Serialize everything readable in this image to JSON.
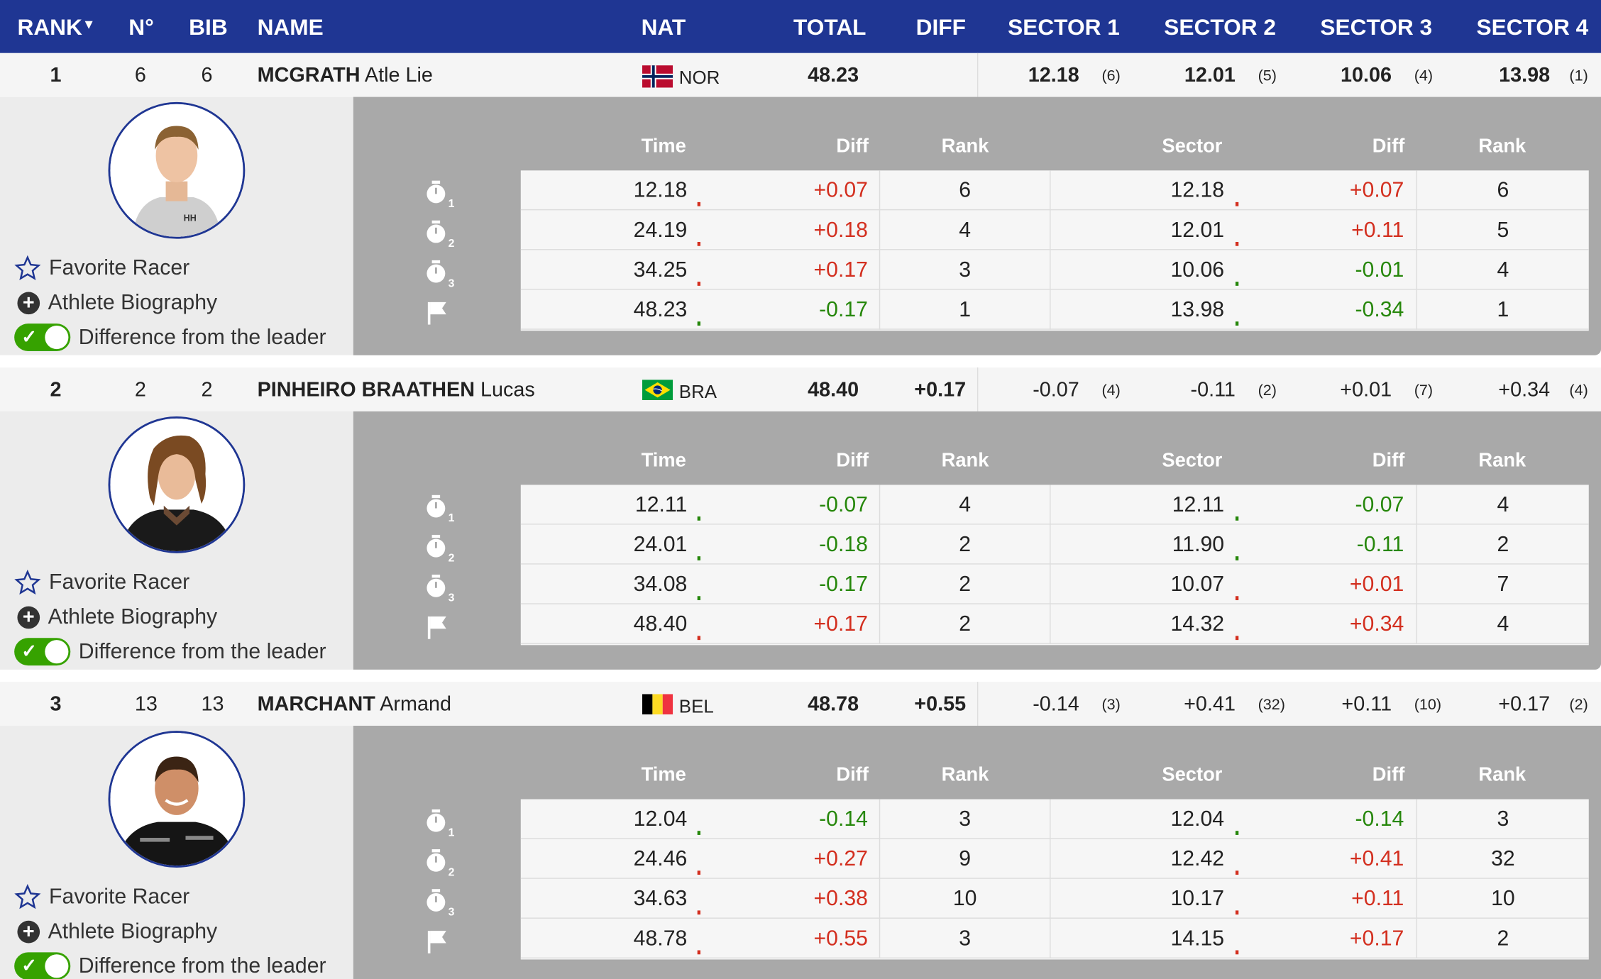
{
  "header": {
    "rank": "RANK",
    "sort_icon": "caret-down-icon",
    "no": "N°",
    "bib": "BIB",
    "name": "NAME",
    "nat": "NAT",
    "total": "TOTAL",
    "diff": "DIFF",
    "sector1": "SECTOR 1",
    "sector2": "SECTOR 2",
    "sector3": "SECTOR 3",
    "sector4": "SECTOR 4"
  },
  "colors": {
    "header_bg": "#1f3693",
    "positive": "#d32f1f",
    "negative": "#26870b",
    "toggle_on": "#36a200"
  },
  "detail_headers": {
    "time": "Time",
    "diff": "Diff",
    "rank": "Rank",
    "sector": "Sector",
    "sdiff": "Diff",
    "srank": "Rank"
  },
  "actions": {
    "favorite": "Favorite Racer",
    "biography": "Athlete Biography",
    "difference": "Difference from the leader"
  },
  "split_labels": [
    "1",
    "2",
    "3"
  ],
  "racers": [
    {
      "rank": "1",
      "no": "6",
      "bib": "6",
      "last": "MCGRATH",
      "first": "Atle Lie",
      "nat": "NOR",
      "total": "48.23",
      "diff": "",
      "sectors": [
        {
          "v": "12.18",
          "r": "(6)"
        },
        {
          "v": "12.01",
          "r": "(5)"
        },
        {
          "v": "10.06",
          "r": "(4)"
        },
        {
          "v": "13.98",
          "r": "(1)"
        }
      ],
      "splits": [
        {
          "time": "12.18",
          "diff": "+0.07",
          "rank": "6",
          "sector": "12.18",
          "sdiff": "+0.07",
          "srank": "6"
        },
        {
          "time": "24.19",
          "diff": "+0.18",
          "rank": "4",
          "sector": "12.01",
          "sdiff": "+0.11",
          "srank": "5"
        },
        {
          "time": "34.25",
          "diff": "+0.17",
          "rank": "3",
          "sector": "10.06",
          "sdiff": "-0.01",
          "srank": "4"
        },
        {
          "time": "48.23",
          "diff": "-0.17",
          "rank": "1",
          "sector": "13.98",
          "sdiff": "-0.34",
          "srank": "1"
        }
      ]
    },
    {
      "rank": "2",
      "no": "2",
      "bib": "2",
      "last": "PINHEIRO BRAATHEN",
      "first": "Lucas",
      "nat": "BRA",
      "total": "48.40",
      "diff": "+0.17",
      "sectors": [
        {
          "v": "-0.07",
          "r": "(4)"
        },
        {
          "v": "-0.11",
          "r": "(2)"
        },
        {
          "v": "+0.01",
          "r": "(7)"
        },
        {
          "v": "+0.34",
          "r": "(4)"
        }
      ],
      "splits": [
        {
          "time": "12.11",
          "diff": "-0.07",
          "rank": "4",
          "sector": "12.11",
          "sdiff": "-0.07",
          "srank": "4"
        },
        {
          "time": "24.01",
          "diff": "-0.18",
          "rank": "2",
          "sector": "11.90",
          "sdiff": "-0.11",
          "srank": "2"
        },
        {
          "time": "34.08",
          "diff": "-0.17",
          "rank": "2",
          "sector": "10.07",
          "sdiff": "+0.01",
          "srank": "7"
        },
        {
          "time": "48.40",
          "diff": "+0.17",
          "rank": "2",
          "sector": "14.32",
          "sdiff": "+0.34",
          "srank": "4"
        }
      ]
    },
    {
      "rank": "3",
      "no": "13",
      "bib": "13",
      "last": "MARCHANT",
      "first": "Armand",
      "nat": "BEL",
      "total": "48.78",
      "diff": "+0.55",
      "sectors": [
        {
          "v": "-0.14",
          "r": "(3)"
        },
        {
          "v": "+0.41",
          "r": "(32)"
        },
        {
          "v": "+0.11",
          "r": "(10)"
        },
        {
          "v": "+0.17",
          "r": "(2)"
        }
      ],
      "splits": [
        {
          "time": "12.04",
          "diff": "-0.14",
          "rank": "3",
          "sector": "12.04",
          "sdiff": "-0.14",
          "srank": "3"
        },
        {
          "time": "24.46",
          "diff": "+0.27",
          "rank": "9",
          "sector": "12.42",
          "sdiff": "+0.41",
          "srank": "32"
        },
        {
          "time": "34.63",
          "diff": "+0.38",
          "rank": "10",
          "sector": "10.17",
          "sdiff": "+0.11",
          "srank": "10"
        },
        {
          "time": "48.78",
          "diff": "+0.55",
          "rank": "3",
          "sector": "14.15",
          "sdiff": "+0.17",
          "srank": "2"
        }
      ]
    }
  ]
}
